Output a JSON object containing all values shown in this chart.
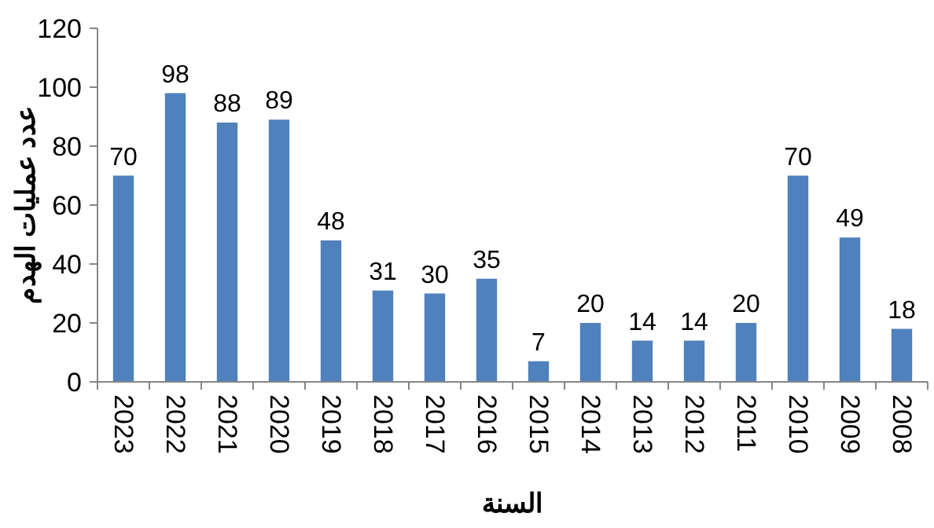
{
  "chart_data": {
    "type": "bar",
    "xlabel": "السنة",
    "ylabel": "عدد عمليات الهدم",
    "categories": [
      "2023",
      "2022",
      "2021",
      "2020",
      "2019",
      "2018",
      "2017",
      "2016",
      "2015",
      "2014",
      "2013",
      "2012",
      "2011",
      "2010",
      "2009",
      "2008"
    ],
    "values": [
      70,
      98,
      88,
      89,
      48,
      31,
      30,
      35,
      7,
      20,
      14,
      14,
      20,
      70,
      49,
      18
    ],
    "color": "#4f81bd",
    "ylim": [
      0,
      120
    ],
    "yticks": [
      0,
      20,
      40,
      60,
      80,
      100,
      120
    ],
    "data_labels": true,
    "grid": false
  }
}
